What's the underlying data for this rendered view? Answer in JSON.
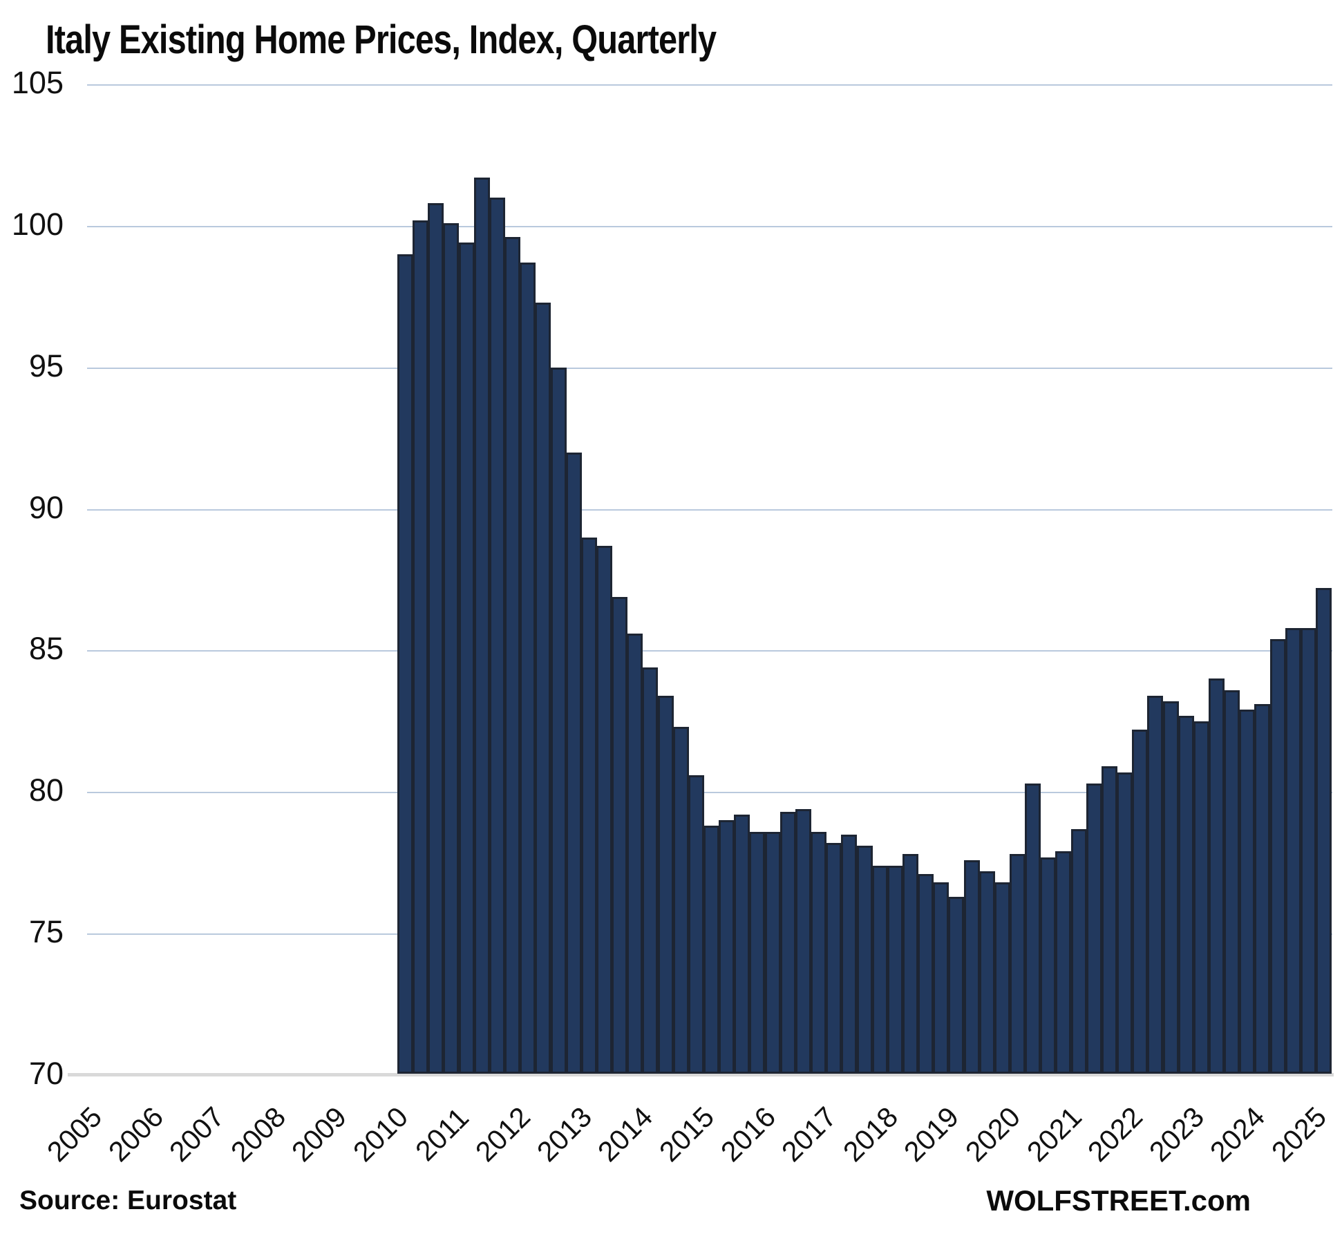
{
  "title": "Italy Existing Home Prices, Index, Quarterly",
  "source_note": "Source: Eurostat",
  "branding": "WOLFSTREET.com",
  "colors": {
    "bar_fill": "#22395e",
    "bar_border": "#1d2533",
    "gridline": "#b9c9dd",
    "axis_baseline": "#d9d9d9",
    "text": "#111111"
  },
  "chart_data": {
    "type": "bar",
    "title": "Italy Existing Home Prices, Index, Quarterly",
    "xlabel": "",
    "ylabel": "",
    "ylim": [
      70,
      105
    ],
    "y_ticks": [
      70,
      75,
      80,
      85,
      90,
      95,
      100,
      105
    ],
    "grid": "horizontal gridlines on, light blue",
    "legend": "none",
    "x_year_labels": [
      "2005",
      "2006",
      "2007",
      "2008",
      "2009",
      "2010",
      "2011",
      "2012",
      "2013",
      "2014",
      "2015",
      "2016",
      "2017",
      "2018",
      "2019",
      "2020",
      "2021",
      "2022",
      "2023",
      "2024",
      "2025"
    ],
    "note": "Quarterly bars begin at 2010Q1; x-axis extends back to 2005 with no data before 2010",
    "categories": [
      "2010Q1",
      "2010Q2",
      "2010Q3",
      "2010Q4",
      "2011Q1",
      "2011Q2",
      "2011Q3",
      "2011Q4",
      "2012Q1",
      "2012Q2",
      "2012Q3",
      "2012Q4",
      "2013Q1",
      "2013Q2",
      "2013Q3",
      "2013Q4",
      "2014Q1",
      "2014Q2",
      "2014Q3",
      "2014Q4",
      "2015Q1",
      "2015Q2",
      "2015Q3",
      "2015Q4",
      "2016Q1",
      "2016Q2",
      "2016Q3",
      "2016Q4",
      "2017Q1",
      "2017Q2",
      "2017Q3",
      "2017Q4",
      "2018Q1",
      "2018Q2",
      "2018Q3",
      "2018Q4",
      "2019Q1",
      "2019Q2",
      "2019Q3",
      "2019Q4",
      "2020Q1",
      "2020Q2",
      "2020Q3",
      "2020Q4",
      "2021Q1",
      "2021Q2",
      "2021Q3",
      "2021Q4",
      "2022Q1",
      "2022Q2",
      "2022Q3",
      "2022Q4",
      "2023Q1",
      "2023Q2",
      "2023Q3",
      "2023Q4",
      "2024Q1",
      "2024Q2",
      "2024Q3",
      "2024Q4",
      "2025Q1"
    ],
    "values": [
      99.0,
      100.2,
      100.8,
      100.1,
      99.4,
      101.7,
      101.0,
      99.6,
      98.7,
      97.3,
      95.0,
      92.0,
      89.0,
      88.7,
      86.9,
      85.6,
      84.4,
      83.4,
      82.3,
      80.6,
      78.8,
      79.0,
      79.2,
      78.6,
      78.6,
      79.3,
      79.4,
      78.6,
      78.2,
      78.5,
      78.1,
      77.4,
      77.4,
      77.8,
      77.1,
      76.8,
      76.3,
      77.6,
      77.2,
      76.8,
      77.8,
      80.3,
      77.7,
      77.9,
      78.7,
      80.3,
      80.9,
      80.7,
      82.2,
      83.4,
      83.2,
      82.7,
      82.5,
      84.0,
      83.6,
      82.9,
      83.1,
      85.4,
      85.8,
      85.8,
      87.2
    ]
  }
}
